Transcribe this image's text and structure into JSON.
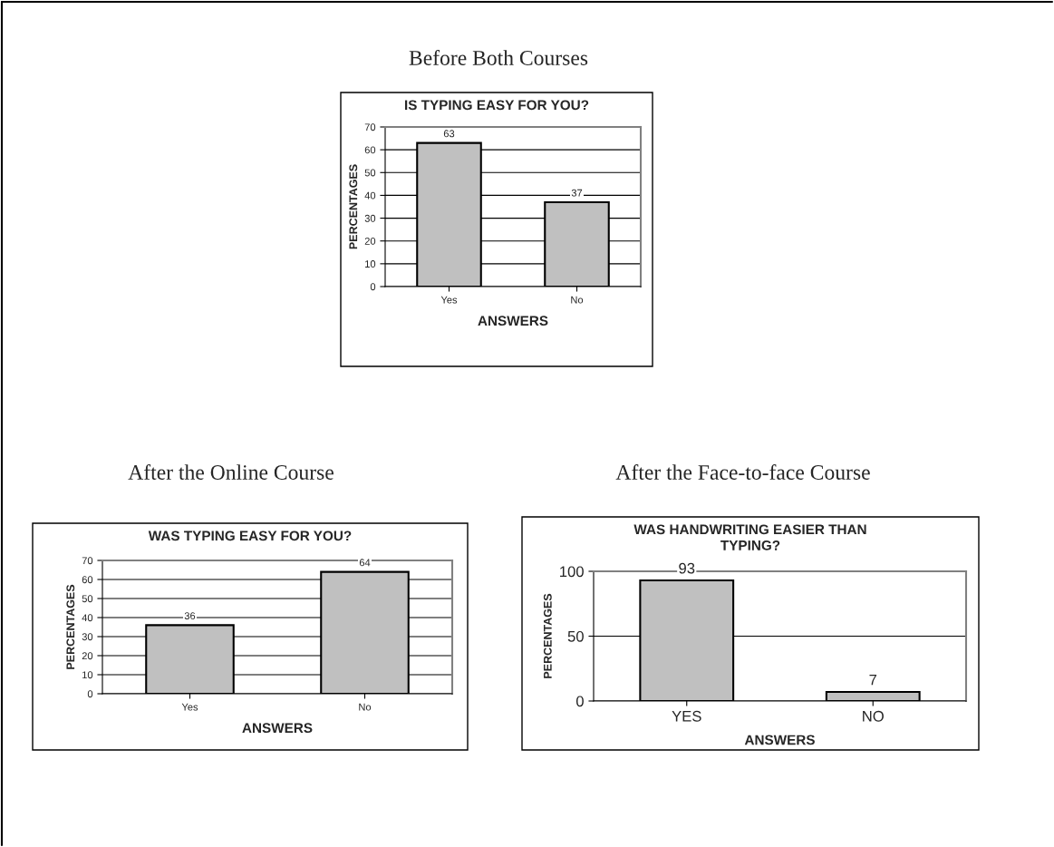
{
  "chart_data": [
    {
      "type": "bar",
      "subtitle": "Before Both Courses",
      "title": "IS TYPING EASY FOR YOU?",
      "xlabel": "ANSWERS",
      "ylabel": "PERCENTAGES",
      "categories": [
        "Yes",
        "No"
      ],
      "values": [
        63,
        37
      ],
      "color": "#c0c0c0",
      "ylim": [
        0,
        70
      ],
      "yticks": [
        0,
        10,
        20,
        30,
        40,
        50,
        60,
        70
      ],
      "grid": "y",
      "data_labels": true
    },
    {
      "type": "bar",
      "subtitle": "After the Online Course",
      "title": "WAS TYPING EASY FOR YOU?",
      "xlabel": "ANSWERS",
      "ylabel": "PERCENTAGES",
      "categories": [
        "Yes",
        "No"
      ],
      "values": [
        36,
        64
      ],
      "color": "#c0c0c0",
      "ylim": [
        0,
        70
      ],
      "yticks": [
        0,
        10,
        20,
        30,
        40,
        50,
        60,
        70
      ],
      "grid": "y",
      "data_labels": true
    },
    {
      "type": "bar",
      "subtitle": "After the Face-to-face Course",
      "title": "WAS HANDWRITING EASIER THAN\nTYPING?",
      "xlabel": "ANSWERS",
      "ylabel": "PERCENTAGES",
      "categories": [
        "YES",
        "NO"
      ],
      "values": [
        93,
        7
      ],
      "color": "#c0c0c0",
      "ylim": [
        0,
        100
      ],
      "yticks": [
        0,
        50,
        100
      ],
      "grid": "y",
      "data_labels": true
    }
  ]
}
